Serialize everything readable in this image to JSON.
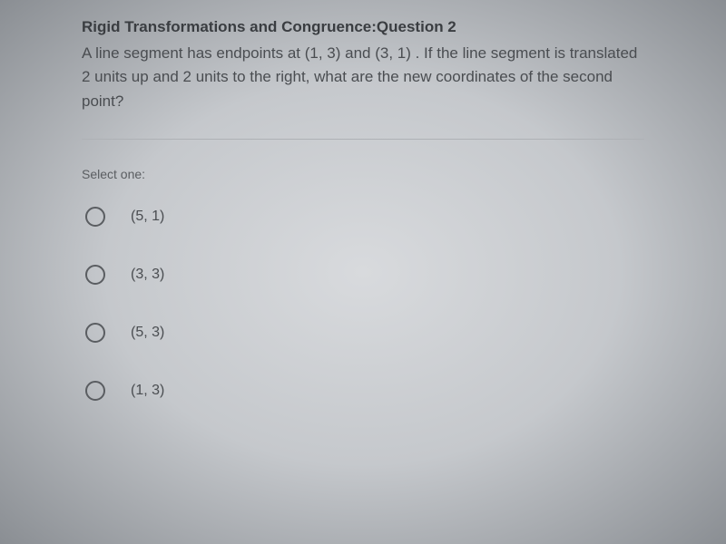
{
  "header": "Rigid Transformations and Congruence:Question 2",
  "question": "A line segment has endpoints at (1, 3) and (3, 1) . If the line segment is translated 2 units up and 2 units to the right, what are the new coordinates of the second point?",
  "select_label": "Select one:",
  "options": [
    {
      "label": "(5, 1)"
    },
    {
      "label": "(3, 3)"
    },
    {
      "label": "(5, 3)"
    },
    {
      "label": "(1, 3)"
    }
  ],
  "colors": {
    "text_primary": "#3a3d41",
    "text_body": "#4a4d51",
    "text_muted": "#5a5d61",
    "radio_border": "#5a5d61",
    "divider": "#aeb1b5"
  },
  "typography": {
    "header_fontsize": 17,
    "body_fontsize": 17,
    "select_fontsize": 14,
    "option_fontsize": 16,
    "font_family": "Arial"
  }
}
